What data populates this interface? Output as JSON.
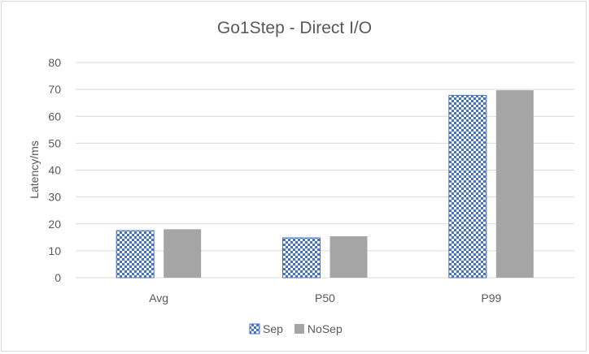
{
  "chart_data": {
    "type": "bar",
    "title": "Go1Step -  Direct I/O",
    "xlabel": "",
    "ylabel": "Latency/ms",
    "categories": [
      "Avg",
      "P50",
      "P99"
    ],
    "series": [
      {
        "name": "Sep",
        "values": [
          17.5,
          14.8,
          67.8
        ],
        "color": "#4472c4",
        "pattern": "checkerboard"
      },
      {
        "name": "NoSep",
        "values": [
          18.0,
          15.4,
          69.7
        ],
        "color": "#a5a5a5",
        "pattern": "solid"
      }
    ],
    "ylim": [
      0,
      80
    ],
    "yticks": [
      0,
      10,
      20,
      30,
      40,
      50,
      60,
      70,
      80
    ],
    "grid": true,
    "legend_position": "bottom"
  }
}
